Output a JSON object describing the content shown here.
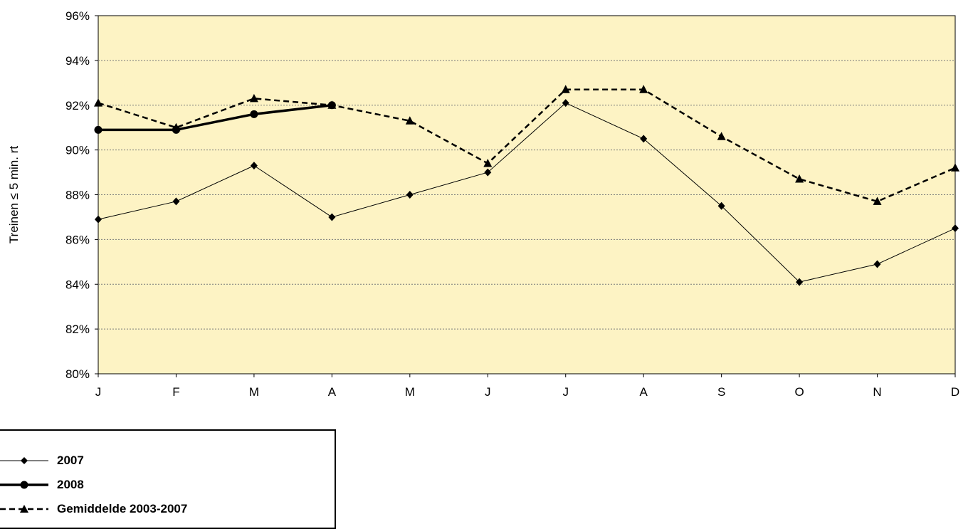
{
  "chart_data": {
    "type": "line",
    "ylabel": "Treinen ≤ 5 min. rt",
    "xlabel": "",
    "categories": [
      "J",
      "F",
      "M",
      "A",
      "M",
      "J",
      "J",
      "A",
      "S",
      "O",
      "N",
      "D"
    ],
    "ylim": [
      80,
      96
    ],
    "yticks": [
      80,
      82,
      84,
      86,
      88,
      90,
      92,
      94,
      96
    ],
    "ytick_labels": [
      "80%",
      "82%",
      "84%",
      "86%",
      "88%",
      "90%",
      "92%",
      "94%",
      "96%"
    ],
    "grid": true,
    "plot_background": "#fdf3c4",
    "legend_position": "bottom-left",
    "series": [
      {
        "name": "2007",
        "values": [
          86.9,
          87.7,
          89.3,
          87.0,
          88.0,
          89.0,
          92.1,
          90.5,
          87.5,
          84.1,
          84.9,
          86.5
        ],
        "marker": "diamond",
        "line": "solid-thin",
        "color": "#000000"
      },
      {
        "name": "2008",
        "values": [
          90.9,
          90.9,
          91.6,
          92.0,
          null,
          null,
          null,
          null,
          null,
          null,
          null,
          null
        ],
        "marker": "circle",
        "line": "solid-thick",
        "color": "#000000"
      },
      {
        "name": "Gemiddelde 2003-2007",
        "values": [
          92.1,
          91.0,
          92.3,
          92.0,
          91.3,
          89.4,
          92.7,
          92.7,
          90.6,
          88.7,
          87.7,
          89.2
        ],
        "marker": "triangle",
        "line": "dashed-thick",
        "color": "#000000"
      }
    ]
  }
}
